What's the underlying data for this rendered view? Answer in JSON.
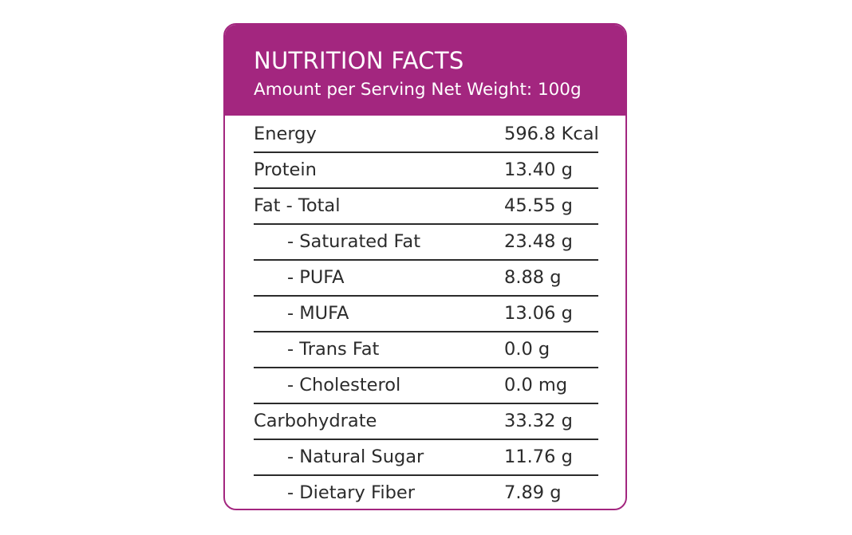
{
  "header": {
    "title": "NUTRITION FACTS",
    "subtitle": "Amount per Serving Net Weight: 100g"
  },
  "nutrients": [
    {
      "name": "Energy",
      "value": "596.8 Kcal"
    },
    {
      "name": "Protein",
      "value": "13.40 g"
    },
    {
      "name": "Fat - Total",
      "value": "45.55 g"
    },
    {
      "name": "- Saturated Fat",
      "value": "23.48 g"
    },
    {
      "name": "- PUFA",
      "value": "8.88 g"
    },
    {
      "name": "- MUFA",
      "value": "13.06 g"
    },
    {
      "name": "- Trans Fat",
      "value": "0.0 g"
    },
    {
      "name": "- Cholesterol",
      "value": "0.0 mg"
    },
    {
      "name": "Carbohydrate",
      "value": "33.32 g"
    },
    {
      "name": "- Natural Sugar",
      "value": "11.76 g"
    },
    {
      "name": "- Dietary Fiber",
      "value": "7.89 g"
    }
  ],
  "colors": {
    "accent": "#a3267f",
    "text": "#2b2b2b",
    "header_text": "#ffffff"
  }
}
